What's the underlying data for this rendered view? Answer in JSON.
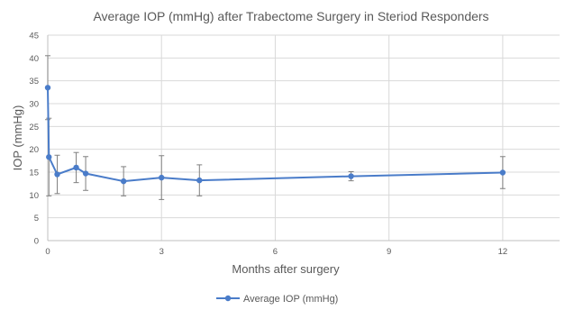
{
  "chart_data": {
    "type": "line",
    "title": "Average  IOP  (mmHg)  after Trabectome  Surgery  in Steriod  Responders",
    "xlabel": "Months  after surgery",
    "ylabel": "IOP  (mmHg)",
    "xlim": [
      0,
      13.5
    ],
    "ylim": [
      0,
      45
    ],
    "x_ticks": [
      0,
      3,
      6,
      9,
      12
    ],
    "y_ticks": [
      0,
      5,
      10,
      15,
      20,
      25,
      30,
      35,
      40,
      45
    ],
    "grid": true,
    "legend_position": "bottom-center",
    "series": [
      {
        "name": "Average IOP (mmHg)",
        "color": "#4a7cc9",
        "x": [
          0,
          0.03,
          0.25,
          0.75,
          1,
          2,
          3,
          4,
          8,
          12
        ],
        "y": [
          33.5,
          18.3,
          14.5,
          16.0,
          14.7,
          13.0,
          13.8,
          13.2,
          14.1,
          14.9
        ],
        "error": [
          7.0,
          8.5,
          4.2,
          3.3,
          3.7,
          3.2,
          4.8,
          3.4,
          1.0,
          3.5
        ]
      }
    ]
  }
}
